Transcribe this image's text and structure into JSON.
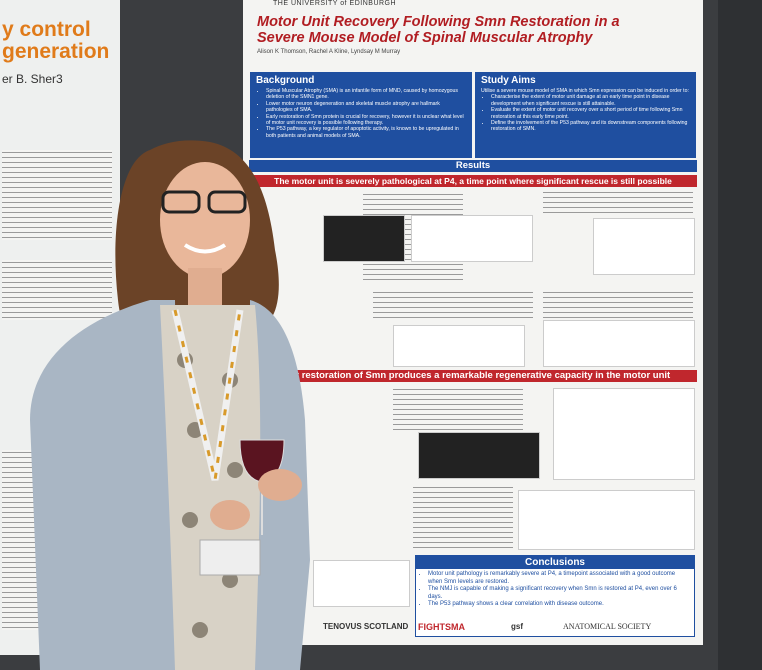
{
  "left_poster": {
    "lines": [
      "y control",
      "generation",
      "er B. Sher3"
    ]
  },
  "poster": {
    "university": "THE UNIVERSITY of EDINBURGH",
    "title": "Motor Unit Recovery Following Smn Restoration in a Severe Mouse Model of Spinal Muscular Atrophy",
    "authors": "Alison K Thomson, Rachel A Kline, Lyndsay M Murray",
    "background": {
      "heading": "Background",
      "bullets": [
        "Spinal Muscular Atrophy (SMA) is an infantile form of MND, caused by homozygous deletion of the SMN1 gene.",
        "Lower motor neuron degeneration and skeletal muscle atrophy are hallmark pathologies of SMA.",
        "Early restoration of Smn protein is crucial for recovery, however it is unclear what level of motor unit recovery is possible following therapy.",
        "The P53 pathway, a key regulator of apoptotic activity, is known to be upregulated in both patients and animal models of SMA."
      ]
    },
    "aims": {
      "heading": "Study Aims",
      "intro": "Utilise a severe mouse model of SMA in which Smn expression can be induced in order to:",
      "bullets": [
        "Characterise the extent of motor unit damage at an early time point in disease development when significant rescue is still attainable.",
        "Evaluate the extent of motor unit recovery over a short period of time following Smn restoration at this early time point.",
        "Define the involvement of the P53 pathway and its downstream components following restoration of SMN."
      ]
    },
    "results": "Results",
    "banner_1": "The motor unit is severely pathological at P4, a time point where significant rescue is still possible",
    "banner_2": "Early restoration of Smn produces a remarkable regenerative capacity in the motor unit",
    "conclusions": {
      "heading": "Conclusions",
      "bullets": [
        "Motor unit pathology is remarkably severe at P4, a timepoint associated with a good outcome when Smn levels are restored.",
        "The NMJ is capable of making a significant recovery when Smn is restored at P4, even over 6 days.",
        "The P53 pathway shows a clear correlation with disease outcome."
      ]
    },
    "sponsors": [
      "TENOVUS SCOTLAND",
      "FIGHTSMA",
      "gsf",
      "ANATOMICAL SOCIETY"
    ]
  }
}
